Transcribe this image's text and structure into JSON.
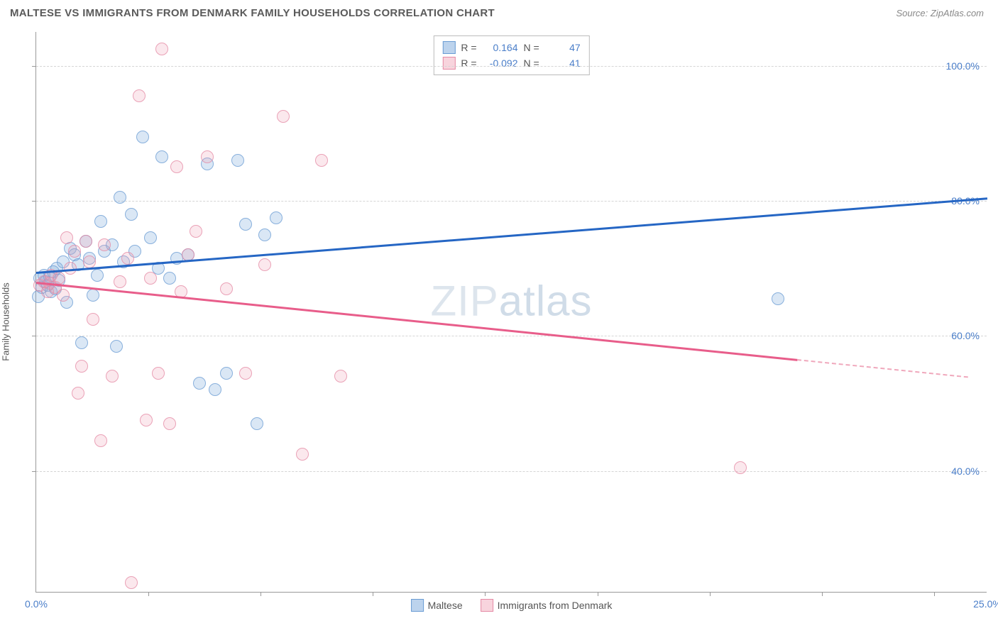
{
  "header": {
    "title": "MALTESE VS IMMIGRANTS FROM DENMARK FAMILY HOUSEHOLDS CORRELATION CHART",
    "source_label": "Source: ZipAtlas.com"
  },
  "watermark": {
    "text_bold": "ZIP",
    "text_thin": "atlas"
  },
  "chart": {
    "type": "scatter",
    "y_axis_label": "Family Households",
    "background_color": "#ffffff",
    "grid_color": "#d5d5d5",
    "axis_color": "#999999",
    "xlim": [
      0,
      25
    ],
    "ylim": [
      22,
      105
    ],
    "x_ticks": [
      0,
      25
    ],
    "x_tick_labels": [
      "0.0%",
      "25.0%"
    ],
    "x_minor_ticks": [
      2.95,
      5.9,
      8.85,
      11.8,
      14.75,
      17.7,
      20.65,
      23.6
    ],
    "y_ticks": [
      40,
      60,
      80,
      100
    ],
    "y_tick_labels": [
      "40.0%",
      "60.0%",
      "80.0%",
      "100.0%"
    ],
    "marker_radius": 9,
    "series": [
      {
        "name": "Maltese",
        "color_fill": "rgba(122,168,219,0.35)",
        "color_stroke": "#6a9cd4",
        "trend_color": "#2566c4",
        "trend": {
          "x1": 0.0,
          "y1": 69.5,
          "x2": 25.0,
          "y2": 80.5,
          "dashed_from": null
        },
        "stats": {
          "r": "0.164",
          "n": "47"
        },
        "points": [
          [
            0.1,
            68.5
          ],
          [
            0.15,
            67.2
          ],
          [
            0.2,
            69.0
          ],
          [
            0.25,
            68.0
          ],
          [
            0.3,
            67.5
          ],
          [
            0.35,
            68.8
          ],
          [
            0.4,
            66.5
          ],
          [
            0.45,
            69.5
          ],
          [
            0.5,
            67.0
          ],
          [
            0.55,
            70.0
          ],
          [
            0.6,
            68.2
          ],
          [
            0.9,
            73.0
          ],
          [
            1.0,
            72.0
          ],
          [
            1.1,
            70.5
          ],
          [
            1.3,
            74.0
          ],
          [
            1.4,
            71.5
          ],
          [
            1.6,
            69.0
          ],
          [
            1.7,
            77.0
          ],
          [
            1.8,
            72.5
          ],
          [
            2.0,
            73.5
          ],
          [
            2.2,
            80.5
          ],
          [
            2.3,
            71.0
          ],
          [
            2.5,
            78.0
          ],
          [
            2.6,
            72.5
          ],
          [
            2.8,
            89.5
          ],
          [
            3.0,
            74.5
          ],
          [
            3.2,
            70.0
          ],
          [
            3.3,
            86.5
          ],
          [
            3.5,
            68.5
          ],
          [
            3.7,
            71.5
          ],
          [
            4.3,
            53.0
          ],
          [
            4.5,
            85.5
          ],
          [
            4.7,
            52.0
          ],
          [
            5.0,
            54.5
          ],
          [
            5.3,
            86.0
          ],
          [
            5.5,
            76.5
          ],
          [
            5.8,
            47.0
          ],
          [
            6.0,
            75.0
          ],
          [
            6.3,
            77.5
          ],
          [
            1.2,
            59.0
          ],
          [
            2.1,
            58.5
          ],
          [
            19.5,
            65.5
          ],
          [
            0.8,
            65.0
          ],
          [
            1.5,
            66.0
          ],
          [
            0.05,
            65.8
          ],
          [
            0.7,
            71.0
          ],
          [
            4.0,
            72.0
          ]
        ]
      },
      {
        "name": "Immigrants from Denmark",
        "color_fill": "rgba(240,160,180,0.3)",
        "color_stroke": "#e58aa5",
        "trend_color": "#e85d8a",
        "trend": {
          "x1": 0.0,
          "y1": 68.0,
          "x2": 24.5,
          "y2": 54.0,
          "dashed_from": 20.0
        },
        "stats": {
          "r": "-0.092",
          "n": "41"
        },
        "points": [
          [
            0.1,
            67.5
          ],
          [
            0.2,
            68.0
          ],
          [
            0.3,
            66.5
          ],
          [
            0.35,
            67.8
          ],
          [
            0.4,
            69.0
          ],
          [
            0.5,
            67.2
          ],
          [
            0.6,
            68.5
          ],
          [
            0.7,
            66.0
          ],
          [
            0.8,
            74.5
          ],
          [
            0.9,
            70.0
          ],
          [
            1.0,
            72.5
          ],
          [
            1.2,
            55.5
          ],
          [
            1.3,
            74.0
          ],
          [
            1.4,
            71.0
          ],
          [
            1.5,
            62.5
          ],
          [
            1.7,
            44.5
          ],
          [
            1.8,
            73.5
          ],
          [
            2.0,
            54.0
          ],
          [
            2.2,
            68.0
          ],
          [
            2.4,
            71.5
          ],
          [
            2.7,
            95.5
          ],
          [
            2.9,
            47.5
          ],
          [
            3.0,
            68.5
          ],
          [
            3.2,
            54.5
          ],
          [
            3.3,
            102.5
          ],
          [
            3.5,
            47.0
          ],
          [
            3.7,
            85.0
          ],
          [
            3.8,
            66.5
          ],
          [
            4.0,
            72.0
          ],
          [
            4.2,
            75.5
          ],
          [
            4.5,
            86.5
          ],
          [
            5.0,
            67.0
          ],
          [
            5.5,
            54.5
          ],
          [
            6.0,
            70.5
          ],
          [
            6.5,
            92.5
          ],
          [
            7.0,
            42.5
          ],
          [
            7.5,
            86.0
          ],
          [
            8.0,
            54.0
          ],
          [
            2.5,
            23.5
          ],
          [
            18.5,
            40.5
          ],
          [
            1.1,
            51.5
          ]
        ]
      }
    ]
  },
  "legend": {
    "series1_label": "Maltese",
    "series2_label": "Immigrants from Denmark"
  },
  "stats_box": {
    "r_label": "R =",
    "n_label": "N ="
  }
}
